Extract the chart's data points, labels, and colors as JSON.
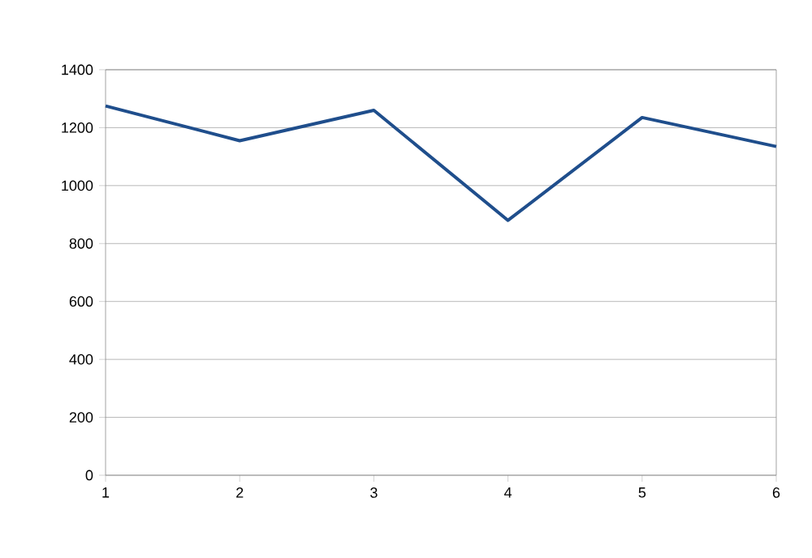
{
  "chart_data": {
    "type": "line",
    "x": [
      1,
      2,
      3,
      4,
      5,
      6
    ],
    "series": [
      {
        "color": "#1f4e8c",
        "values": [
          1275,
          1155,
          1260,
          880,
          1235,
          1135
        ]
      }
    ],
    "xlim": [
      1,
      6
    ],
    "xticks": [
      1,
      2,
      3,
      4,
      5,
      6
    ],
    "ylim": [
      0,
      1400
    ],
    "yticks": [
      0,
      200,
      400,
      600,
      800,
      1000,
      1200,
      1400
    ],
    "grid": "y",
    "marker": "none",
    "line_style": "solid"
  }
}
